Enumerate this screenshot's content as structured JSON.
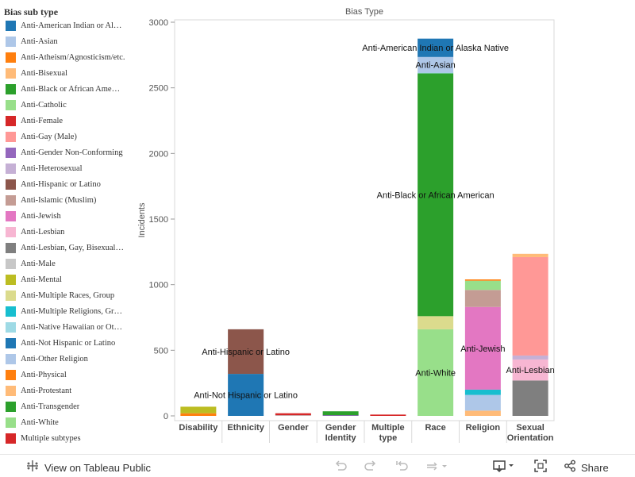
{
  "legend": {
    "title": "Bias sub type",
    "items": [
      {
        "label": "Anti-American Indian or Al…",
        "color": "#1f77b4"
      },
      {
        "label": "Anti-Asian",
        "color": "#aec7e8"
      },
      {
        "label": "Anti-Atheism/Agnosticism/etc.",
        "color": "#ff7f0e"
      },
      {
        "label": "Anti-Bisexual",
        "color": "#ffbb78"
      },
      {
        "label": "Anti-Black or African Ame…",
        "color": "#2ca02c"
      },
      {
        "label": "Anti-Catholic",
        "color": "#98df8a"
      },
      {
        "label": "Anti-Female",
        "color": "#d62728"
      },
      {
        "label": "Anti-Gay (Male)",
        "color": "#ff9896"
      },
      {
        "label": "Anti-Gender Non-Conforming",
        "color": "#9467bd"
      },
      {
        "label": "Anti-Heterosexual",
        "color": "#c5b0d5"
      },
      {
        "label": "Anti-Hispanic or Latino",
        "color": "#8c564b"
      },
      {
        "label": "Anti-Islamic (Muslim)",
        "color": "#c49c94"
      },
      {
        "label": "Anti-Jewish",
        "color": "#e377c2"
      },
      {
        "label": "Anti-Lesbian",
        "color": "#f7b6d2"
      },
      {
        "label": "Anti-Lesbian, Gay, Bisexual…",
        "color": "#7f7f7f"
      },
      {
        "label": "Anti-Male",
        "color": "#c7c7c7"
      },
      {
        "label": "Anti-Mental",
        "color": "#bcbd22"
      },
      {
        "label": "Anti-Multiple Races, Group",
        "color": "#dbdb8d"
      },
      {
        "label": "Anti-Multiple Religions, Gr…",
        "color": "#17becf"
      },
      {
        "label": "Anti-Native Hawaiian or Ot…",
        "color": "#9edae5"
      },
      {
        "label": "Anti-Not Hispanic or Latino",
        "color": "#1f77b4"
      },
      {
        "label": "Anti-Other Religion",
        "color": "#aec7e8"
      },
      {
        "label": "Anti-Physical",
        "color": "#ff7f0e"
      },
      {
        "label": "Anti-Protestant",
        "color": "#ffbb78"
      },
      {
        "label": "Anti-Transgender",
        "color": "#2ca02c"
      },
      {
        "label": "Anti-White",
        "color": "#98df8a"
      },
      {
        "label": "Multiple subtypes",
        "color": "#d62728"
      }
    ]
  },
  "chart_data": {
    "type": "bar",
    "stacked": true,
    "title": "Bias Type",
    "ylabel": "Incidents",
    "ylim": [
      0,
      3000
    ],
    "yticks": [
      0,
      500,
      1000,
      1500,
      2000,
      2500,
      3000
    ],
    "grid": false,
    "categories": [
      "Disability",
      "Ethnicity",
      "Gender",
      "Gender Identity",
      "Multiple type",
      "Race",
      "Religion",
      "Sexual Orientation"
    ],
    "category_lines": [
      [
        "Disability"
      ],
      [
        "Ethnicity"
      ],
      [
        "Gender"
      ],
      [
        "Gender",
        "Identity"
      ],
      [
        "Multiple",
        "type"
      ],
      [
        "Race"
      ],
      [
        "Religion"
      ],
      [
        "Sexual",
        "Orientation"
      ]
    ],
    "bars": [
      {
        "category": "Disability",
        "segments": [
          {
            "name": "Anti-Physical",
            "value": 20,
            "color": "#ff7f0e"
          },
          {
            "name": "Anti-Mental",
            "value": 50,
            "color": "#bcbd22"
          }
        ]
      },
      {
        "category": "Ethnicity",
        "segments": [
          {
            "name": "Anti-Not Hispanic or Latino",
            "value": 320,
            "color": "#1f77b4",
            "label": "Anti-Not Hispanic or Latino"
          },
          {
            "name": "Anti-Hispanic or Latino",
            "value": 340,
            "color": "#8c564b",
            "label": "Anti-Hispanic or Latino"
          }
        ]
      },
      {
        "category": "Gender",
        "segments": [
          {
            "name": "Anti-Male",
            "value": 5,
            "color": "#c7c7c7"
          },
          {
            "name": "Anti-Female",
            "value": 15,
            "color": "#d62728"
          }
        ]
      },
      {
        "category": "Gender Identity",
        "segments": [
          {
            "name": "Anti-Gender Non-Conforming",
            "value": 5,
            "color": "#9467bd"
          },
          {
            "name": "Anti-Transgender",
            "value": 30,
            "color": "#2ca02c"
          }
        ]
      },
      {
        "category": "Multiple type",
        "segments": [
          {
            "name": "Multiple subtypes",
            "value": 10,
            "color": "#d62728"
          }
        ]
      },
      {
        "category": "Race",
        "segments": [
          {
            "name": "Anti-White",
            "value": 660,
            "color": "#98df8a",
            "label": "Anti-White"
          },
          {
            "name": "Anti-Multiple Races, Group",
            "value": 100,
            "color": "#dbdb8d"
          },
          {
            "name": "Anti-Black or African American",
            "value": 1850,
            "color": "#2ca02c",
            "label": "Anti-Black or African American"
          },
          {
            "name": "Anti-Native Hawaiian or Other Pacific Islander",
            "value": 5,
            "color": "#9edae5"
          },
          {
            "name": "Anti-Asian",
            "value": 120,
            "color": "#aec7e8",
            "label": "Anti-Asian"
          },
          {
            "name": "Anti-American Indian or Alaska Native",
            "value": 140,
            "color": "#1f77b4",
            "label": "Anti-American Indian or Alaska Native"
          }
        ]
      },
      {
        "category": "Religion",
        "segments": [
          {
            "name": "Anti-Protestant",
            "value": 40,
            "color": "#ffbb78"
          },
          {
            "name": "Anti-Other Religion",
            "value": 120,
            "color": "#aec7e8"
          },
          {
            "name": "Anti-Multiple Religions, Group",
            "value": 40,
            "color": "#17becf"
          },
          {
            "name": "Anti-Jewish",
            "value": 630,
            "color": "#e377c2",
            "label": "Anti-Jewish"
          },
          {
            "name": "Anti-Islamic (Muslim)",
            "value": 130,
            "color": "#c49c94"
          },
          {
            "name": "Anti-Catholic",
            "value": 70,
            "color": "#98df8a"
          },
          {
            "name": "Anti-Atheism/Agnosticism/etc.",
            "value": 10,
            "color": "#ff7f0e"
          }
        ]
      },
      {
        "category": "Sexual Orientation",
        "segments": [
          {
            "name": "Anti-Lesbian, Gay, Bisexual, or Transgender (Mixed Group)",
            "value": 270,
            "color": "#7f7f7f"
          },
          {
            "name": "Anti-Lesbian",
            "value": 160,
            "color": "#f7b6d2",
            "label": "Anti-Lesbian"
          },
          {
            "name": "Anti-Heterosexual",
            "value": 30,
            "color": "#c5b0d5"
          },
          {
            "name": "Anti-Gay (Male)",
            "value": 750,
            "color": "#ff9896"
          },
          {
            "name": "Anti-Bisexual",
            "value": 25,
            "color": "#ffbb78"
          }
        ]
      }
    ]
  },
  "toolbar": {
    "view_label": "View on Tableau Public",
    "share_label": "Share",
    "icons": [
      "tableau-logo-icon",
      "undo-icon",
      "redo-icon",
      "revert-icon",
      "refresh-icon",
      "download-icon",
      "fullscreen-icon",
      "share-icon"
    ]
  }
}
